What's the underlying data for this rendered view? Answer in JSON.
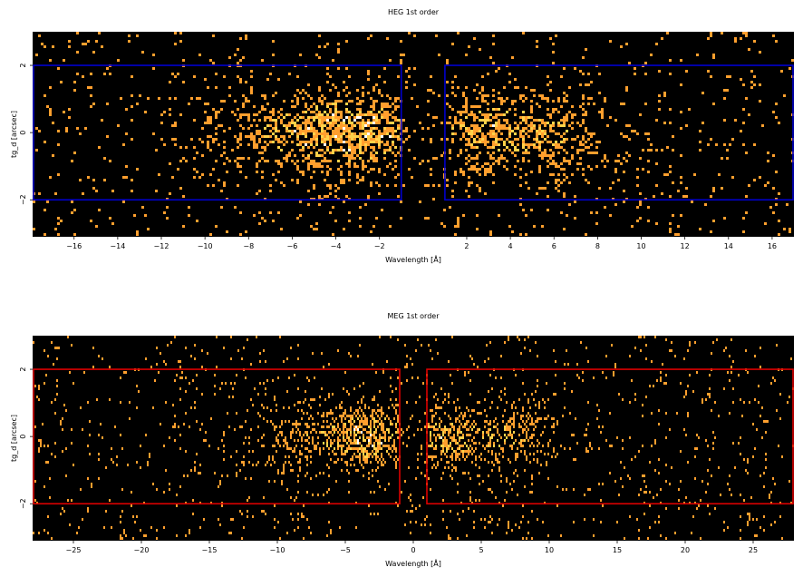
{
  "chart_data": [
    {
      "type": "heatmap",
      "title": "HEG 1st order",
      "xlabel": "Wavelength [Å]",
      "ylabel": "tg_d [arcsec]",
      "xlim": [
        -17.9,
        17.0
      ],
      "ylim": [
        -3.1,
        3.0
      ],
      "xticks": [
        -16,
        -14,
        -12,
        -10,
        -8,
        -6,
        -4,
        -2,
        2,
        4,
        6,
        8,
        10,
        12,
        14,
        16
      ],
      "yticks": [
        -2,
        0,
        2
      ],
      "grid": false,
      "background_color": "#000000",
      "colormap": [
        "#000000",
        "#ff9f2e",
        "#ffd24a",
        "#ffffff"
      ],
      "region_color": "#0000cc",
      "regions": [
        {
          "x": [
            -17.9,
            -1.0
          ],
          "y": [
            -2.0,
            2.0
          ]
        },
        {
          "x": [
            1.0,
            17.0
          ],
          "y": [
            -2.0,
            2.0
          ]
        }
      ],
      "source_profile": {
        "peaks": [
          {
            "center": -3.0,
            "width": 2.2,
            "strength": 1.0
          },
          {
            "center": -6.5,
            "width": 2.5,
            "strength": 0.45
          },
          {
            "center": 3.2,
            "width": 1.6,
            "strength": 0.85
          },
          {
            "center": 6.5,
            "width": 1.5,
            "strength": 0.5
          }
        ],
        "y_sigma": 0.75,
        "background": 0.035
      }
    },
    {
      "type": "heatmap",
      "title": "MEG 1st order",
      "xlabel": "Wavelength [Å]",
      "ylabel": "tg_d [arcsec]",
      "xlim": [
        -28.0,
        28.0
      ],
      "ylim": [
        -3.1,
        3.0
      ],
      "xticks": [
        -25,
        -20,
        -15,
        -10,
        -5,
        0,
        5,
        10,
        15,
        20,
        25
      ],
      "yticks": [
        -2,
        0,
        2
      ],
      "grid": false,
      "background_color": "#000000",
      "colormap": [
        "#000000",
        "#ff9f2e",
        "#ffd24a",
        "#ffffff"
      ],
      "region_color": "#dd0000",
      "regions": [
        {
          "x": [
            -28.0,
            -1.0
          ],
          "y": [
            -2.0,
            2.0
          ]
        },
        {
          "x": [
            1.0,
            28.0
          ],
          "y": [
            -2.0,
            2.0
          ]
        }
      ],
      "source_profile": {
        "peaks": [
          {
            "center": -3.0,
            "width": 2.0,
            "strength": 1.0
          },
          {
            "center": -8.0,
            "width": 2.5,
            "strength": 0.55
          },
          {
            "center": 2.5,
            "width": 1.5,
            "strength": 0.8
          },
          {
            "center": 7.0,
            "width": 2.2,
            "strength": 0.7
          }
        ],
        "y_sigma": 0.55,
        "background": 0.03
      }
    }
  ]
}
